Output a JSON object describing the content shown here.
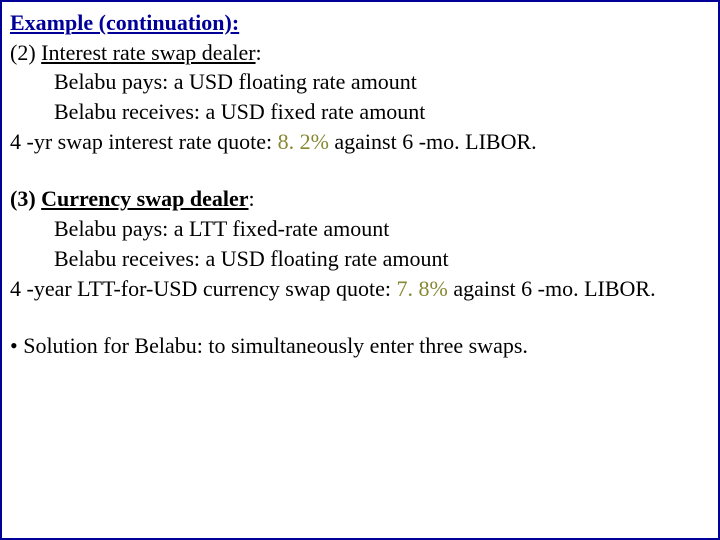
{
  "header": {
    "title": "Example (continuation):"
  },
  "section2": {
    "heading_prefix": "(2) ",
    "heading_text": "Interest rate swap dealer",
    "heading_suffix": ":",
    "line1": "Belabu pays: a USD floating rate amount",
    "line2": "Belabu receives: a USD fixed rate amount",
    "quote_prefix": "4 -yr swap interest rate quote: ",
    "quote_value": "8. 2%",
    "quote_suffix": " against 6 -mo. LIBOR."
  },
  "section3": {
    "heading_prefix": "(3) ",
    "heading_text": "Currency swap dealer",
    "heading_suffix": ":",
    "line1": "Belabu pays: a LTT fixed-rate amount",
    "line2": "Belabu receives: a USD floating rate amount",
    "quote_prefix": "4 -year LTT-for-USD currency swap quote: ",
    "quote_value": "7. 8%",
    "quote_suffix": " against 6 -mo. LIBOR."
  },
  "solution": {
    "text": "• Solution for Belabu: to simultaneously enter three swaps."
  }
}
